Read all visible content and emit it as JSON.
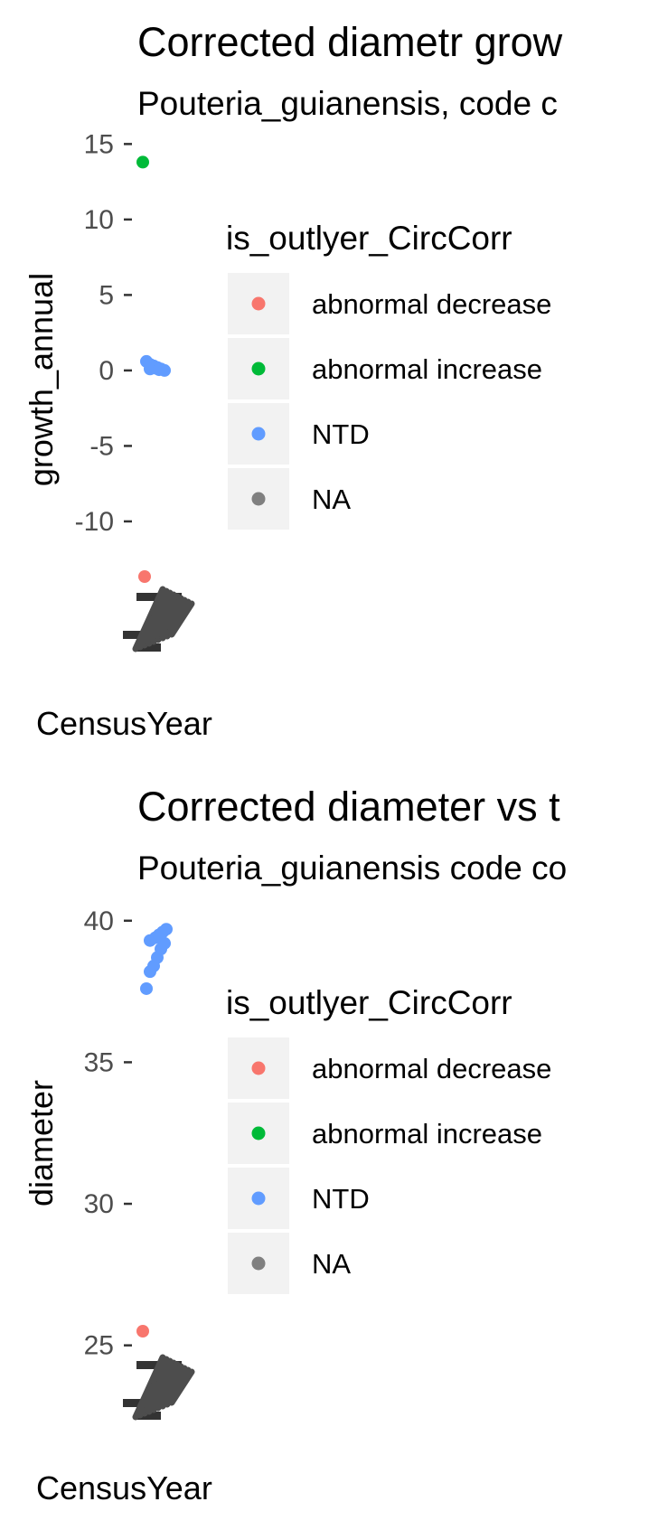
{
  "chart_data": [
    {
      "type": "scatter",
      "title": "Corrected diametr grow",
      "subtitle": "Pouteria_guianensis, code c",
      "xlabel": "CensusYear",
      "ylabel": "growth_annual",
      "y_ticks": [
        "15",
        "10",
        "5",
        "0",
        "-5",
        "-10"
      ],
      "y_tick_values": [
        15,
        10,
        5,
        0,
        -5,
        -10
      ],
      "ylim": [
        -11.5,
        15.8
      ],
      "legend": {
        "title": "is_outlyer_CircCorr",
        "position": "right",
        "items": [
          {
            "label": "abnormal decrease",
            "color": "#F8766D"
          },
          {
            "label": "abnormal increase",
            "color": "#00BA38"
          },
          {
            "label": "NTD",
            "color": "#619CFF"
          },
          {
            "label": "NA",
            "color": "#808080"
          }
        ]
      },
      "points": [
        {
          "y": 13.8,
          "color": "#00BA38"
        },
        {
          "y": 0.6,
          "color": "#619CFF"
        },
        {
          "y": 0.4,
          "color": "#619CFF"
        },
        {
          "y": 0.3,
          "color": "#619CFF"
        },
        {
          "y": 0.2,
          "color": "#619CFF"
        },
        {
          "y": 0.1,
          "color": "#619CFF"
        },
        {
          "y": 0.0,
          "color": "#619CFF"
        },
        {
          "y": 0.1,
          "color": "#619CFF"
        },
        {
          "y": 0.15,
          "color": "#619CFF"
        },
        {
          "y": 0.05,
          "color": "#619CFF"
        }
      ],
      "below_axis_point": {
        "color": "#F8766D"
      }
    },
    {
      "type": "scatter",
      "title": "Corrected diameter vs t",
      "subtitle": "Pouteria_guianensis code co",
      "xlabel": "CensusYear",
      "ylabel": "diameter",
      "y_ticks": [
        "40",
        "35",
        "30",
        "25"
      ],
      "y_tick_values": [
        40,
        35,
        30,
        25
      ],
      "ylim": [
        24.0,
        40.6
      ],
      "legend": {
        "title": "is_outlyer_CircCorr",
        "position": "right",
        "items": [
          {
            "label": "abnormal decrease",
            "color": "#F8766D"
          },
          {
            "label": "abnormal increase",
            "color": "#00BA38"
          },
          {
            "label": "NTD",
            "color": "#619CFF"
          },
          {
            "label": "NA",
            "color": "#808080"
          }
        ]
      },
      "points": [
        {
          "y": 25.5,
          "color": "#F8766D"
        },
        {
          "y": 37.6,
          "color": "#619CFF"
        },
        {
          "y": 38.2,
          "color": "#619CFF"
        },
        {
          "y": 38.4,
          "color": "#619CFF"
        },
        {
          "y": 38.7,
          "color": "#619CFF"
        },
        {
          "y": 39.0,
          "color": "#619CFF"
        },
        {
          "y": 39.2,
          "color": "#619CFF"
        },
        {
          "y": 39.3,
          "color": "#619CFF"
        },
        {
          "y": 39.4,
          "color": "#619CFF"
        },
        {
          "y": 39.5,
          "color": "#619CFF"
        },
        {
          "y": 39.6,
          "color": "#619CFF"
        },
        {
          "y": 39.7,
          "color": "#619CFF"
        }
      ]
    }
  ]
}
